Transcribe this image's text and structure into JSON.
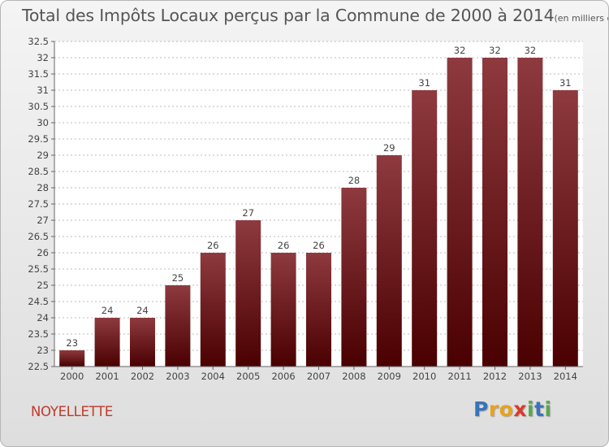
{
  "header": {
    "title": "Total des Impôts Locaux perçus par la Commune de 2000 à 2014",
    "subtitle": "(en milliers d'€)"
  },
  "footer": {
    "commune": "NOYELLETTE",
    "logo_letters": [
      "P",
      "r",
      "o",
      "x",
      "i",
      "t",
      "i"
    ],
    "logo_colors": [
      "#3a73b9",
      "#e8a21b",
      "#e8a21b",
      "#d93a2b",
      "#5aa84a",
      "#3a73b9",
      "#5aa84a"
    ]
  },
  "colors": {
    "bar_top": "#8e3a3f",
    "bar_bottom": "#4a0000",
    "grid": "#bbbbbb",
    "commune": "#c0392b"
  },
  "chart_data": {
    "type": "bar",
    "title": "Total des Impôts Locaux perçus par la Commune de 2000 à 2014",
    "xlabel": "",
    "ylabel": "",
    "categories": [
      "2000",
      "2001",
      "2002",
      "2003",
      "2004",
      "2005",
      "2006",
      "2007",
      "2008",
      "2009",
      "2010",
      "2011",
      "2012",
      "2013",
      "2014"
    ],
    "values": [
      23,
      24,
      24,
      25,
      26,
      27,
      26,
      26,
      28,
      29,
      31,
      32,
      32,
      32,
      31
    ],
    "labels": [
      "23",
      "24",
      "24",
      "25",
      "26",
      "27",
      "26",
      "26",
      "28",
      "29",
      "31",
      "32",
      "32",
      "32",
      "31"
    ],
    "ylim": [
      22.5,
      32.5
    ],
    "yticks": [
      "22.5",
      "23",
      "23.5",
      "24",
      "24.5",
      "25",
      "25.5",
      "26",
      "26.5",
      "27",
      "27.5",
      "28",
      "28.5",
      "29",
      "29.5",
      "30",
      "30.5",
      "31",
      "31.5",
      "32",
      "32.5"
    ],
    "grid": true
  }
}
